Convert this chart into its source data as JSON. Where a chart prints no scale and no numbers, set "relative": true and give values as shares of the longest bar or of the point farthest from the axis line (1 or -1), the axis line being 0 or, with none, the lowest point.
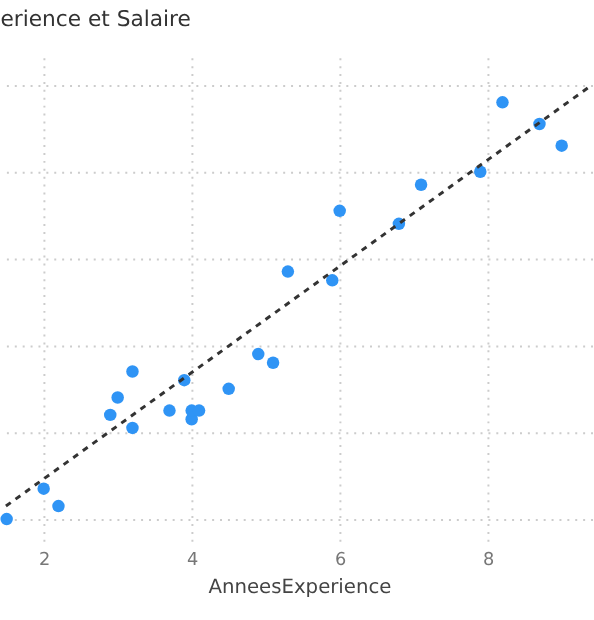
{
  "chart_data": {
    "type": "scatter",
    "title": "erience et Salaire",
    "xlabel": "AnneesExperience",
    "relative": true,
    "xlim": [
      1.49,
      9.41
    ],
    "xticks": [
      2,
      4,
      6,
      8
    ],
    "grid": true,
    "series": [
      {
        "type": "scatter",
        "marker": "circle",
        "color": "#2f94f5",
        "x": [
          1.5,
          2.0,
          2.2,
          2.9,
          3.0,
          3.2,
          3.2,
          3.7,
          3.9,
          4.0,
          4.0,
          4.1,
          4.5,
          4.9,
          5.1,
          5.3,
          5.9,
          6.0,
          6.8,
          7.1,
          7.9,
          8.2,
          8.7,
          9.0
        ],
        "values": [
          0,
          0.07,
          0.03,
          0.24,
          0.28,
          0.34,
          0.21,
          0.25,
          0.32,
          0.23,
          0.25,
          0.25,
          0.3,
          0.38,
          0.36,
          0.57,
          0.55,
          0.71,
          0.68,
          0.77,
          0.8,
          0.96,
          0.91,
          0.86
        ]
      },
      {
        "type": "line",
        "color": "#333333",
        "line_style": "dashed",
        "marker": "none",
        "x": [
          1.49,
          9.41
        ],
        "values": [
          0.03,
          1
        ]
      }
    ]
  }
}
